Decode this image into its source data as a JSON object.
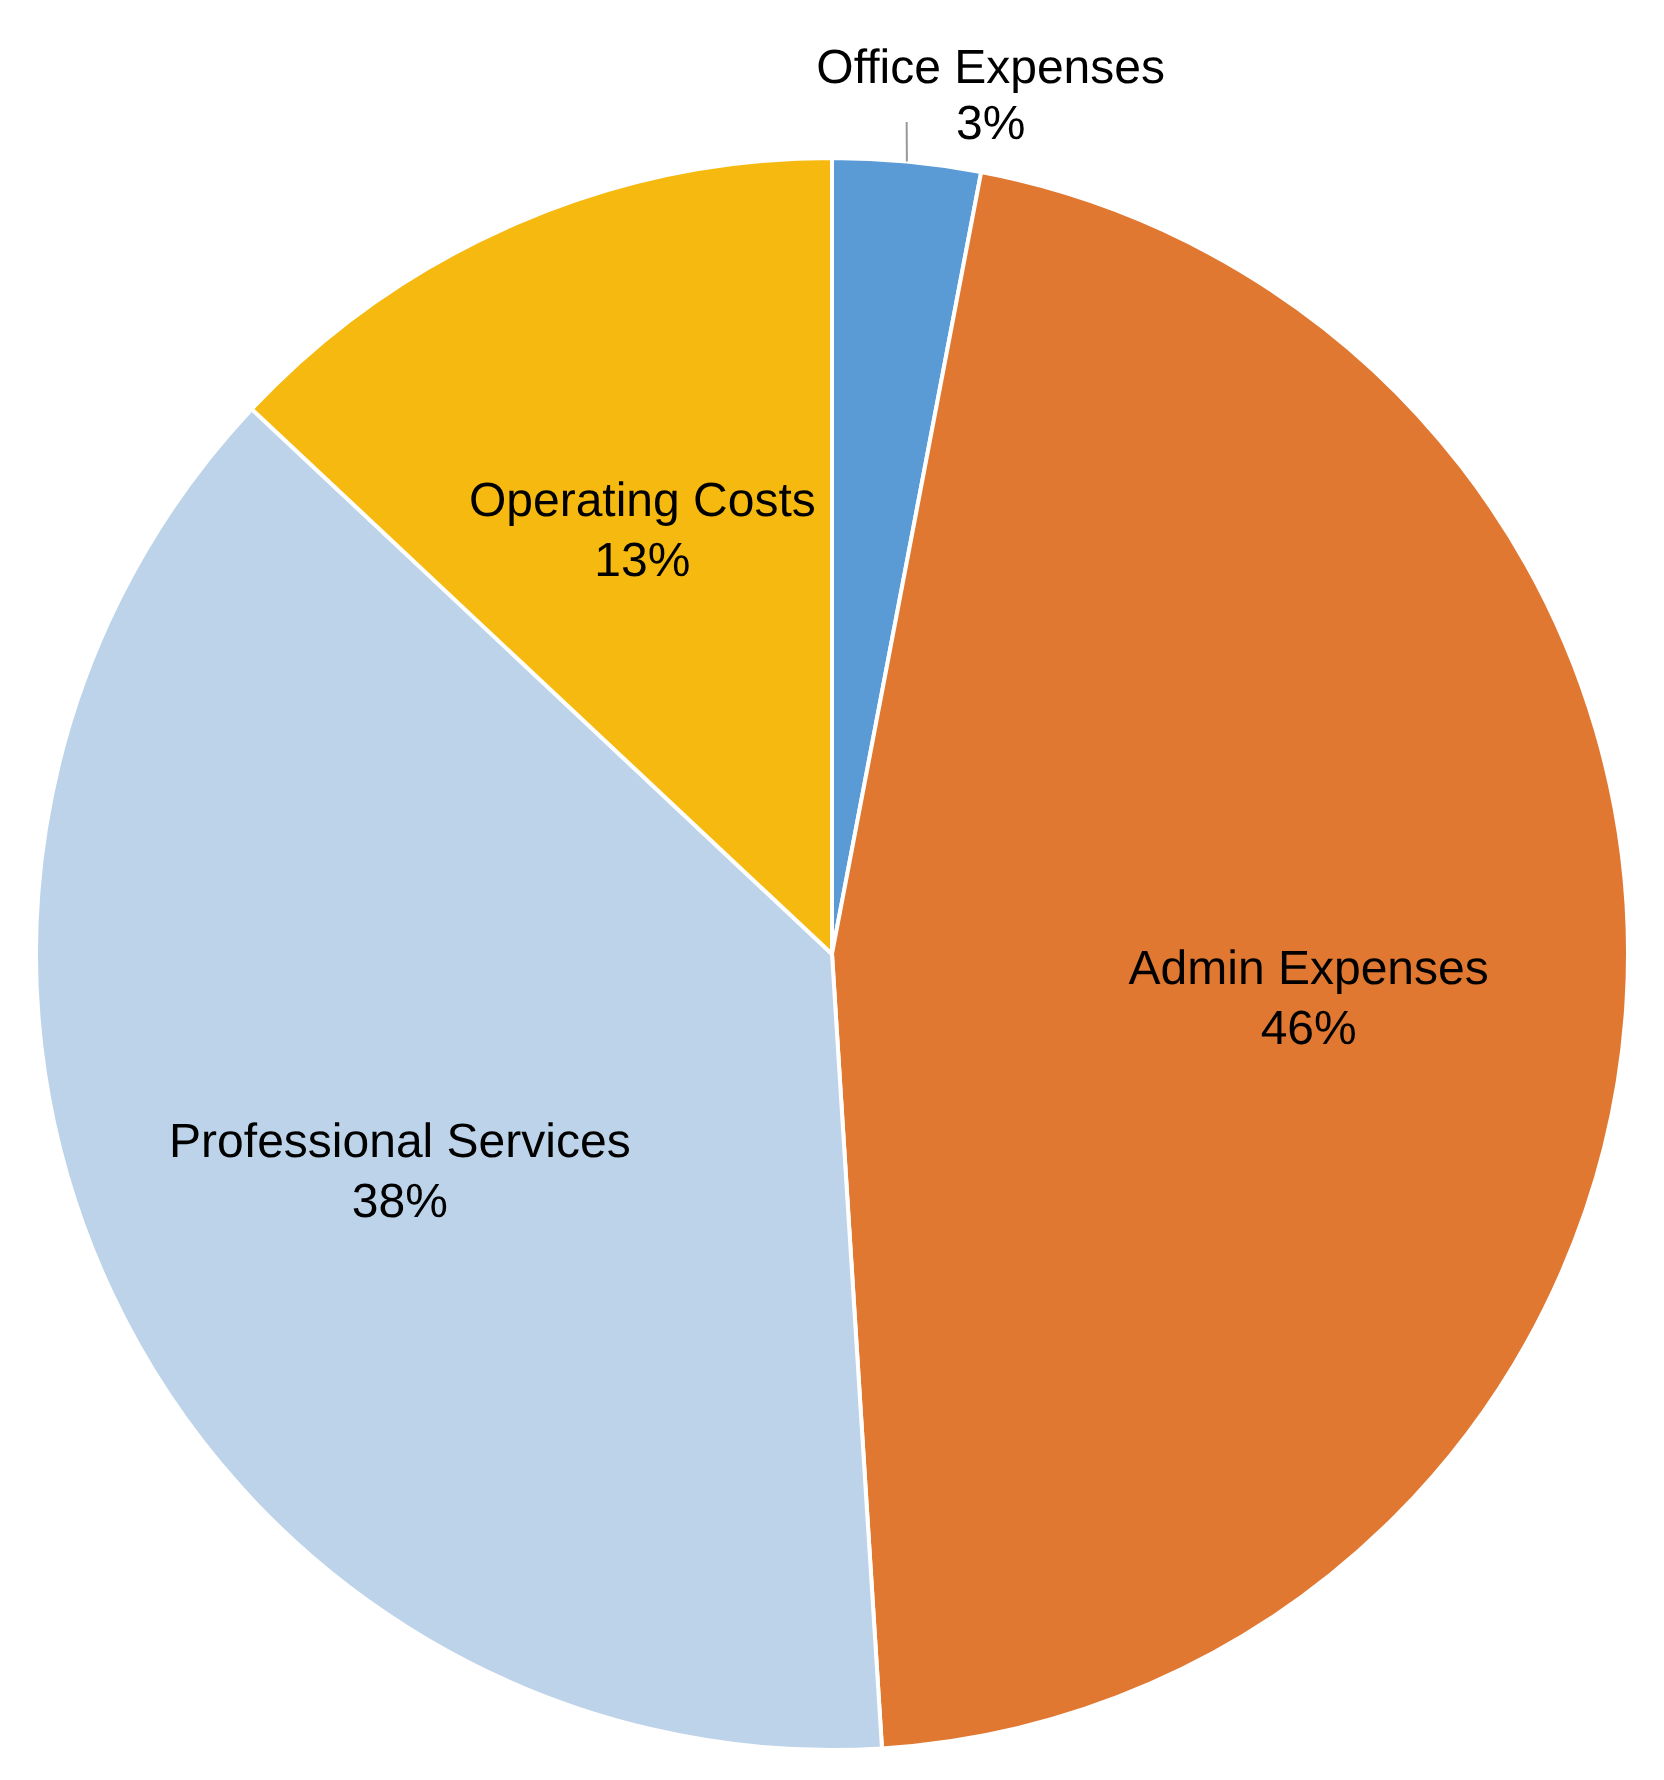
{
  "chart_data": {
    "type": "pie",
    "categories": [
      "Office Expenses",
      "Admin Expenses",
      "Professional Services",
      "Operating Costs"
    ],
    "values": [
      3,
      46,
      38,
      13
    ],
    "colors": [
      "#5b9bd5",
      "#e07832",
      "#bdd3e9",
      "#f5b90f"
    ],
    "value_labels": [
      "3%",
      "46%",
      "38%",
      "13%"
    ],
    "legend": false
  }
}
